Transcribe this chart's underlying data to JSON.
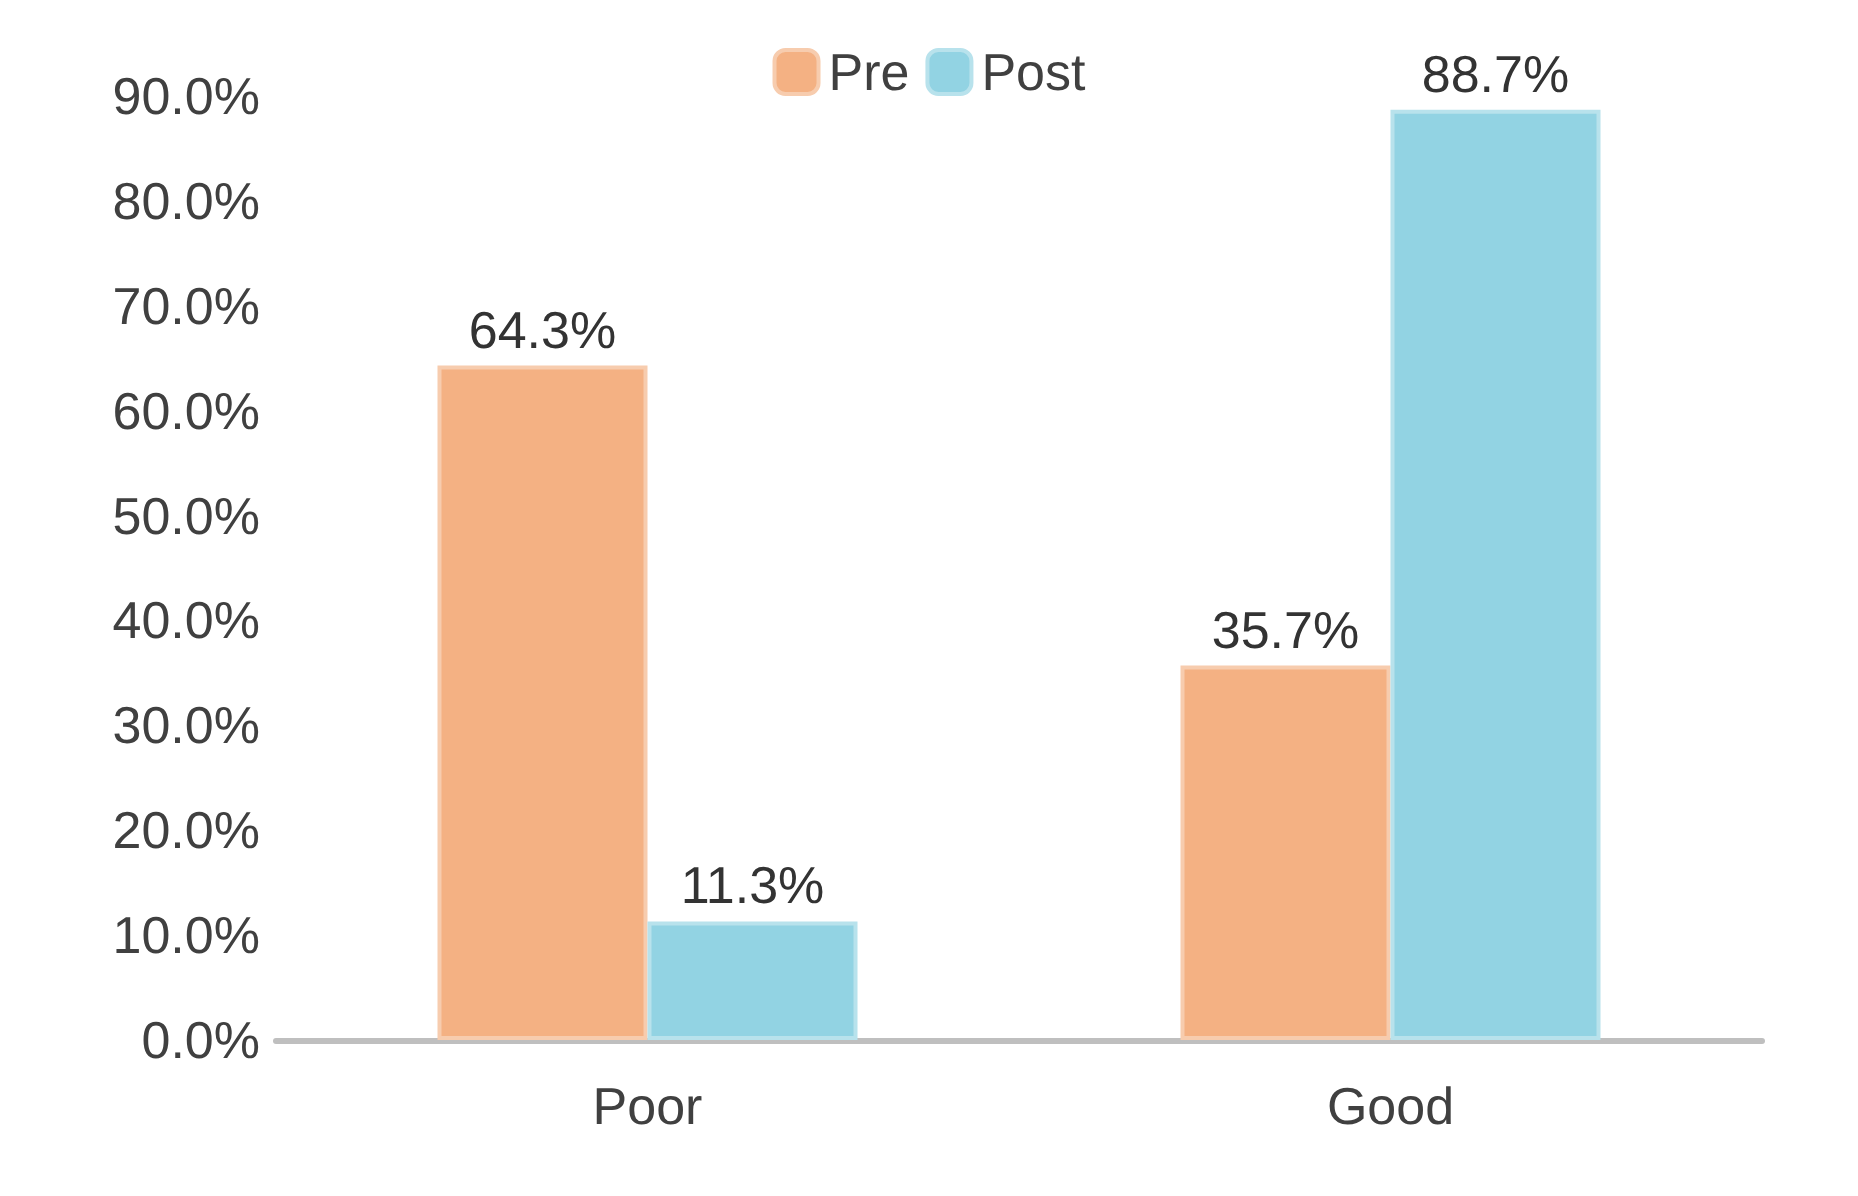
{
  "chart_data": {
    "type": "bar",
    "categories": [
      "Poor",
      "Good"
    ],
    "series": [
      {
        "name": "Pre",
        "color": "#f4b183",
        "values": [
          64.3,
          35.7
        ],
        "value_labels": [
          "64.3%",
          "35.7%"
        ]
      },
      {
        "name": "Post",
        "color": "#92d3e3",
        "values": [
          11.3,
          88.7
        ],
        "value_labels": [
          "11.3%",
          "88.7%"
        ]
      }
    ],
    "ylim": [
      0,
      90
    ],
    "yticks": [
      {
        "value": 0,
        "label": "0.0%"
      },
      {
        "value": 10,
        "label": "10.0%"
      },
      {
        "value": 20,
        "label": "20.0%"
      },
      {
        "value": 30,
        "label": "30.0%"
      },
      {
        "value": 40,
        "label": "40.0%"
      },
      {
        "value": 50,
        "label": "50.0%"
      },
      {
        "value": 60,
        "label": "60.0%"
      },
      {
        "value": 70,
        "label": "70.0%"
      },
      {
        "value": 80,
        "label": "80.0%"
      },
      {
        "value": 90,
        "label": "90.0%"
      }
    ],
    "grid": false,
    "legend": "top"
  }
}
